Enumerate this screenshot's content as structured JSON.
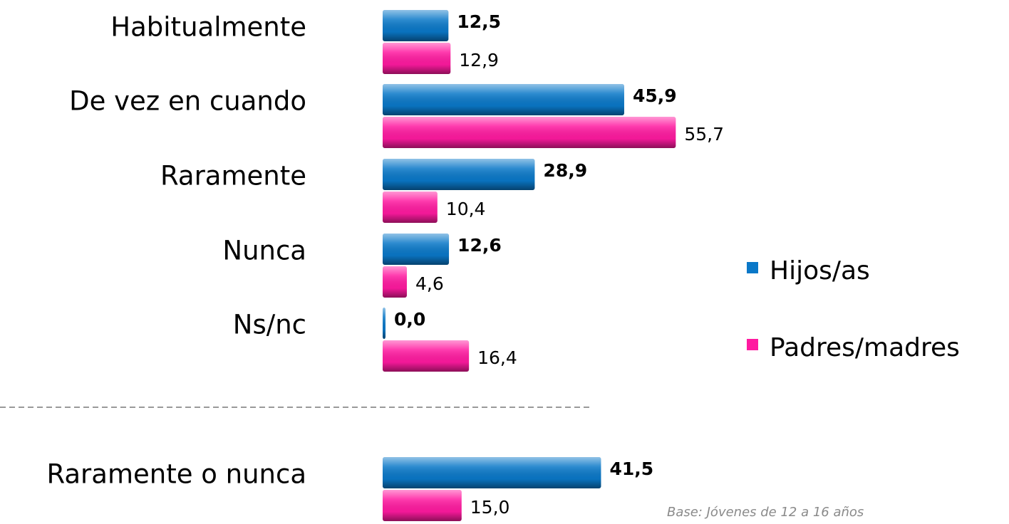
{
  "chart_data": {
    "type": "bar",
    "orientation": "horizontal",
    "categories": [
      "Habitualmente",
      "De vez en cuando",
      "Raramente",
      "Nunca",
      "Ns/nc",
      "Raramente o nunca"
    ],
    "series": [
      {
        "name": "Hijos/as",
        "color": "#0a78c8",
        "values": [
          12.5,
          45.9,
          28.9,
          12.6,
          0.0,
          41.5
        ],
        "value_labels": [
          "12,5",
          "45,9",
          "28,9",
          "12,6",
          "0,0",
          "41,5"
        ]
      },
      {
        "name": "Padres/madres",
        "color": "#ff1aa0",
        "values": [
          12.9,
          55.7,
          10.4,
          4.6,
          16.4,
          15.0
        ],
        "value_labels": [
          "12,9",
          "55,7",
          "10,4",
          "4,6",
          "16,4",
          "15,0"
        ]
      }
    ],
    "legend": "right",
    "annotation": "Base: Jóvenes de 12 a 16 años"
  }
}
